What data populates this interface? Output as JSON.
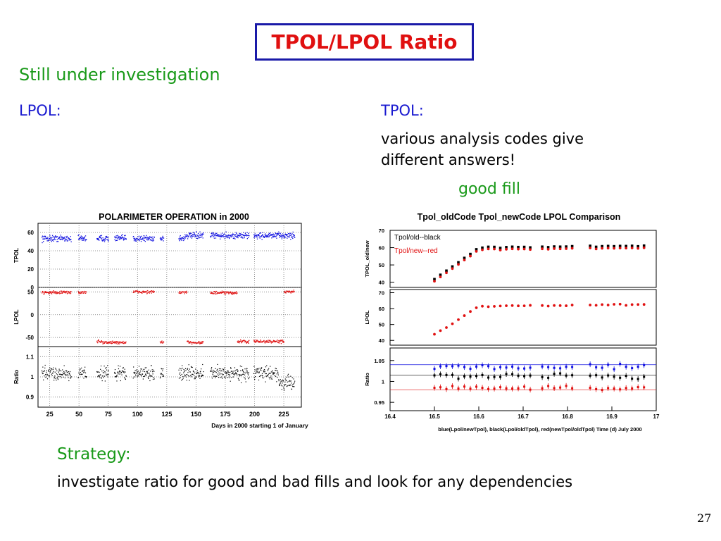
{
  "slide": {
    "title": "TPOL/LPOL Ratio",
    "subtitle": "Still under investigation",
    "lpol_label": "LPOL:",
    "tpol_label": "TPOL:",
    "tpol_desc_line1": "various analysis codes give",
    "tpol_desc_line2": "different answers!",
    "good_fill": "good fill",
    "strategy_label": "Strategy:",
    "strategy_desc": "investigate ratio for good and bad fills and look for any dependencies",
    "page_number": "27",
    "colors": {
      "title": "#e01010",
      "title_border": "#1a1aa8",
      "green": "#1a9a1a",
      "blue": "#1a1ad0"
    }
  },
  "chart_data": [
    {
      "type": "scatter",
      "title": "POLARIMETER OPERATION in 2000",
      "xlabel": "Days in 2000 starting 1 of January",
      "x_ticks": [
        "25",
        "50",
        "75",
        "100",
        "125",
        "150",
        "175",
        "200",
        "225"
      ],
      "xlim": [
        15,
        240
      ],
      "panels": [
        {
          "ylabel": "TPOL",
          "yticks": [
            "0",
            "20",
            "40",
            "60"
          ],
          "ylim": [
            0,
            70
          ],
          "color": "#1010e0"
        },
        {
          "ylabel": "LPOL",
          "yticks": [
            "-50",
            "0",
            "50"
          ],
          "ylim": [
            -70,
            60
          ],
          "color": "#e01010"
        },
        {
          "ylabel": "Ratio",
          "yticks": [
            "0.9",
            "1",
            "1.1"
          ],
          "ylim": [
            0.85,
            1.15
          ],
          "color": "#000000"
        }
      ]
    },
    {
      "type": "scatter",
      "title": "Tpol_oldCode Tpol_newCode LPOL Comparison",
      "xlabel": "blue(Lpol/newTpol), black(Lpol/oldTpol), red(newTpol/oldTpol)     Time (d) July 2000",
      "x_ticks": [
        "16.4",
        "16.5",
        "16.6",
        "16.7",
        "16.8",
        "16.9",
        "17"
      ],
      "xlim": [
        16.4,
        17.0
      ],
      "legend": [
        "Tpol/old--black",
        "Tpol/new--red"
      ],
      "panels": [
        {
          "ylabel": "TPOL_old/new",
          "yticks": [
            "40",
            "50",
            "60",
            "70"
          ],
          "ylim": [
            37,
            70
          ]
        },
        {
          "ylabel": "LPOL",
          "yticks": [
            "40",
            "50",
            "60",
            "70"
          ],
          "ylim": [
            37,
            72
          ]
        },
        {
          "ylabel": "Ratio",
          "yticks": [
            "0.95",
            "1",
            "1.05"
          ],
          "ylim": [
            0.93,
            1.08
          ]
        }
      ]
    }
  ]
}
